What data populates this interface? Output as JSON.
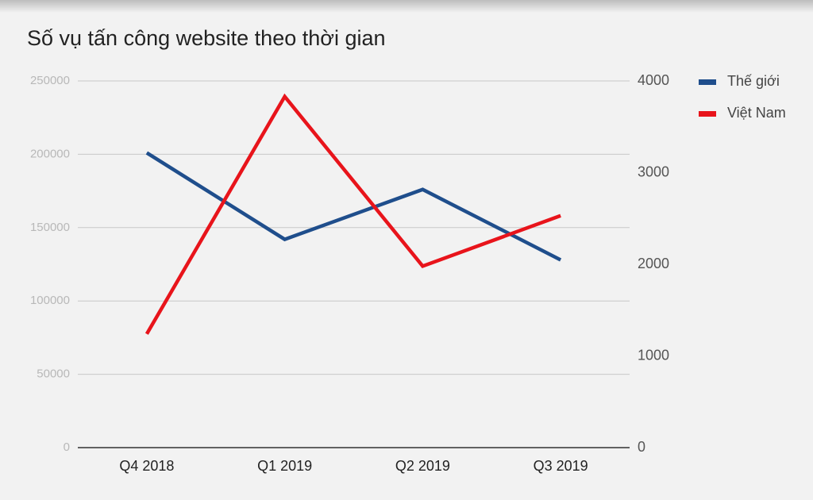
{
  "chart_data": {
    "type": "line",
    "title": "Số vụ tấn công website theo thời gian",
    "categories": [
      "Q4 2018",
      "Q1 2019",
      "Q2 2019",
      "Q3 2019"
    ],
    "series": [
      {
        "name": "Thế giới",
        "color": "#1f4e8c",
        "values": [
          201000,
          142000,
          176000,
          128000
        ]
      },
      {
        "name": "Việt Nam",
        "color": "#e8141b",
        "values": [
          1240,
          3830,
          1980,
          2530
        ],
        "axis": "y2"
      }
    ],
    "ylim": [
      0,
      250000
    ],
    "yticks": [
      0,
      50000,
      100000,
      150000,
      200000,
      250000
    ],
    "y2lim": [
      0,
      4000
    ],
    "y2ticks": [
      0,
      1000,
      2000,
      3000,
      4000
    ],
    "grid": true,
    "legend": "right-top"
  }
}
